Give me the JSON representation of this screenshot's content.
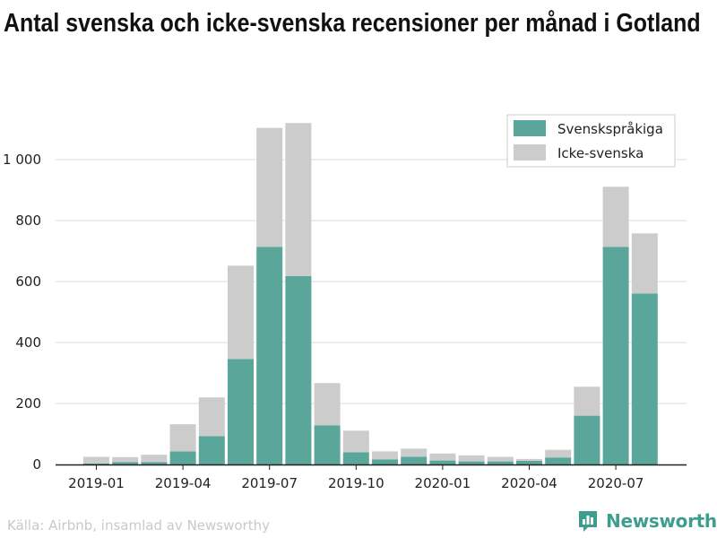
{
  "title": "Antal svenska och icke-svenska recensioner per månad i Gotland",
  "source": "Källa: Airbnb, insamlad av Newsworthy",
  "brand": {
    "name": "Newsworthy",
    "logo_icon": "bar-chart-logo-icon",
    "color": "#3d9e8e"
  },
  "colors": {
    "swedish": "#5aa69b",
    "non_swedish": "#cccccc"
  },
  "chart_data": {
    "type": "bar",
    "stacked": true,
    "categories": [
      "2019-01",
      "2019-02",
      "2019-03",
      "2019-04",
      "2019-05",
      "2019-06",
      "2019-07",
      "2019-08",
      "2019-09",
      "2019-10",
      "2019-11",
      "2019-12",
      "2020-01",
      "2020-02",
      "2020-03",
      "2020-04",
      "2020-05",
      "2020-06",
      "2020-07",
      "2020-08"
    ],
    "series": [
      {
        "name": "Svenskspråkiga",
        "color": "#5aa69b",
        "values": [
          3,
          8,
          8,
          43,
          93,
          346,
          714,
          618,
          128,
          40,
          17,
          25,
          13,
          10,
          10,
          12,
          23,
          160,
          714,
          561
        ]
      },
      {
        "name": "Icke-svenska",
        "color": "#cccccc",
        "values": [
          22,
          16,
          24,
          89,
          127,
          306,
          390,
          502,
          139,
          71,
          26,
          27,
          23,
          20,
          15,
          6,
          25,
          95,
          197,
          197
        ]
      }
    ],
    "xticks": [
      "2019-01",
      "2019-04",
      "2019-07",
      "2019-10",
      "2020-01",
      "2020-04",
      "2020-07"
    ],
    "yticks": [
      0,
      200,
      400,
      600,
      800,
      1000
    ],
    "ytick_labels": [
      "0",
      "200",
      "400",
      "600",
      "800",
      "1 000"
    ],
    "ylim": [
      0,
      1150
    ],
    "grid": "horizontal",
    "legend_position": "top-right"
  }
}
